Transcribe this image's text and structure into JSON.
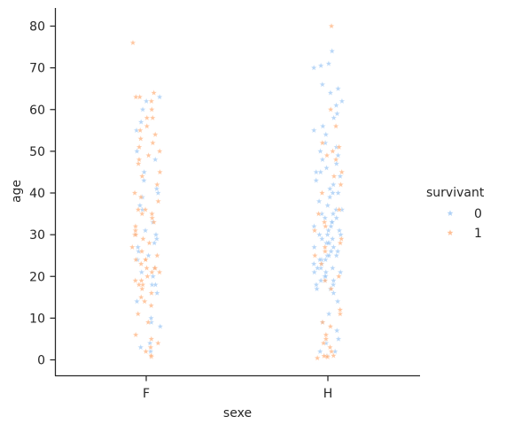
{
  "chart_data": {
    "type": "scatter",
    "subtype": "strip",
    "marker": "star",
    "categories": [
      "F",
      "H"
    ],
    "xlabel": "sexe",
    "ylabel": "age",
    "ylim": [
      -3.5,
      84
    ],
    "yticks": [
      0,
      10,
      20,
      30,
      40,
      50,
      60,
      70,
      80
    ],
    "grid": false,
    "legend": {
      "title": "survivant",
      "position": "right"
    },
    "series": [
      {
        "name": "0",
        "color": "#a1c9f4",
        "points": [
          {
            "x": "F",
            "y": 2
          },
          {
            "x": "F",
            "y": 3
          },
          {
            "x": "F",
            "y": 4
          },
          {
            "x": "F",
            "y": 8
          },
          {
            "x": "F",
            "y": 9
          },
          {
            "x": "F",
            "y": 10
          },
          {
            "x": "F",
            "y": 14
          },
          {
            "x": "F",
            "y": 16
          },
          {
            "x": "F",
            "y": 18
          },
          {
            "x": "F",
            "y": 18
          },
          {
            "x": "F",
            "y": 20
          },
          {
            "x": "F",
            "y": 21
          },
          {
            "x": "F",
            "y": 22
          },
          {
            "x": "F",
            "y": 24
          },
          {
            "x": "F",
            "y": 25
          },
          {
            "x": "F",
            "y": 26
          },
          {
            "x": "F",
            "y": 27
          },
          {
            "x": "F",
            "y": 28
          },
          {
            "x": "F",
            "y": 29
          },
          {
            "x": "F",
            "y": 30
          },
          {
            "x": "F",
            "y": 30
          },
          {
            "x": "F",
            "y": 31
          },
          {
            "x": "F",
            "y": 33
          },
          {
            "x": "F",
            "y": 36
          },
          {
            "x": "F",
            "y": 37
          },
          {
            "x": "F",
            "y": 39
          },
          {
            "x": "F",
            "y": 40
          },
          {
            "x": "F",
            "y": 41
          },
          {
            "x": "F",
            "y": 43
          },
          {
            "x": "F",
            "y": 45
          },
          {
            "x": "F",
            "y": 48
          },
          {
            "x": "F",
            "y": 50
          },
          {
            "x": "F",
            "y": 55
          },
          {
            "x": "F",
            "y": 57
          },
          {
            "x": "F",
            "y": 60
          },
          {
            "x": "F",
            "y": 62
          },
          {
            "x": "F",
            "y": 63
          },
          {
            "x": "H",
            "y": 1
          },
          {
            "x": "H",
            "y": 2
          },
          {
            "x": "H",
            "y": 2
          },
          {
            "x": "H",
            "y": 4
          },
          {
            "x": "H",
            "y": 5
          },
          {
            "x": "H",
            "y": 7
          },
          {
            "x": "H",
            "y": 9
          },
          {
            "x": "H",
            "y": 11
          },
          {
            "x": "H",
            "y": 14
          },
          {
            "x": "H",
            "y": 16
          },
          {
            "x": "H",
            "y": 17
          },
          {
            "x": "H",
            "y": 17
          },
          {
            "x": "H",
            "y": 18
          },
          {
            "x": "H",
            "y": 18
          },
          {
            "x": "H",
            "y": 19
          },
          {
            "x": "H",
            "y": 19
          },
          {
            "x": "H",
            "y": 19
          },
          {
            "x": "H",
            "y": 20
          },
          {
            "x": "H",
            "y": 20
          },
          {
            "x": "H",
            "y": 20
          },
          {
            "x": "H",
            "y": 21
          },
          {
            "x": "H",
            "y": 21
          },
          {
            "x": "H",
            "y": 21
          },
          {
            "x": "H",
            "y": 22
          },
          {
            "x": "H",
            "y": 22
          },
          {
            "x": "H",
            "y": 22
          },
          {
            "x": "H",
            "y": 23
          },
          {
            "x": "H",
            "y": 23
          },
          {
            "x": "H",
            "y": 24
          },
          {
            "x": "H",
            "y": 24
          },
          {
            "x": "H",
            "y": 24
          },
          {
            "x": "H",
            "y": 25
          },
          {
            "x": "H",
            "y": 25
          },
          {
            "x": "H",
            "y": 25
          },
          {
            "x": "H",
            "y": 26
          },
          {
            "x": "H",
            "y": 26
          },
          {
            "x": "H",
            "y": 27
          },
          {
            "x": "H",
            "y": 27
          },
          {
            "x": "H",
            "y": 28
          },
          {
            "x": "H",
            "y": 28
          },
          {
            "x": "H",
            "y": 28
          },
          {
            "x": "H",
            "y": 29
          },
          {
            "x": "H",
            "y": 29
          },
          {
            "x": "H",
            "y": 30
          },
          {
            "x": "H",
            "y": 30
          },
          {
            "x": "H",
            "y": 30
          },
          {
            "x": "H",
            "y": 31
          },
          {
            "x": "H",
            "y": 31
          },
          {
            "x": "H",
            "y": 32
          },
          {
            "x": "H",
            "y": 32
          },
          {
            "x": "H",
            "y": 33
          },
          {
            "x": "H",
            "y": 33
          },
          {
            "x": "H",
            "y": 34
          },
          {
            "x": "H",
            "y": 34
          },
          {
            "x": "H",
            "y": 35
          },
          {
            "x": "H",
            "y": 35
          },
          {
            "x": "H",
            "y": 36
          },
          {
            "x": "H",
            "y": 36
          },
          {
            "x": "H",
            "y": 37
          },
          {
            "x": "H",
            "y": 38
          },
          {
            "x": "H",
            "y": 39
          },
          {
            "x": "H",
            "y": 40
          },
          {
            "x": "H",
            "y": 40
          },
          {
            "x": "H",
            "y": 41
          },
          {
            "x": "H",
            "y": 42
          },
          {
            "x": "H",
            "y": 43
          },
          {
            "x": "H",
            "y": 44
          },
          {
            "x": "H",
            "y": 45
          },
          {
            "x": "H",
            "y": 45
          },
          {
            "x": "H",
            "y": 46
          },
          {
            "x": "H",
            "y": 47
          },
          {
            "x": "H",
            "y": 48
          },
          {
            "x": "H",
            "y": 49
          },
          {
            "x": "H",
            "y": 50
          },
          {
            "x": "H",
            "y": 51
          },
          {
            "x": "H",
            "y": 52
          },
          {
            "x": "H",
            "y": 54
          },
          {
            "x": "H",
            "y": 55
          },
          {
            "x": "H",
            "y": 56
          },
          {
            "x": "H",
            "y": 58
          },
          {
            "x": "H",
            "y": 59
          },
          {
            "x": "H",
            "y": 61
          },
          {
            "x": "H",
            "y": 62
          },
          {
            "x": "H",
            "y": 64
          },
          {
            "x": "H",
            "y": 65
          },
          {
            "x": "H",
            "y": 66
          },
          {
            "x": "H",
            "y": 70
          },
          {
            "x": "H",
            "y": 70.5
          },
          {
            "x": "H",
            "y": 71
          },
          {
            "x": "H",
            "y": 74
          }
        ]
      },
      {
        "name": "1",
        "color": "#ffb482",
        "points": [
          {
            "x": "F",
            "y": 0.75
          },
          {
            "x": "F",
            "y": 1
          },
          {
            "x": "F",
            "y": 2
          },
          {
            "x": "F",
            "y": 3
          },
          {
            "x": "F",
            "y": 4
          },
          {
            "x": "F",
            "y": 5
          },
          {
            "x": "F",
            "y": 6
          },
          {
            "x": "F",
            "y": 9
          },
          {
            "x": "F",
            "y": 11
          },
          {
            "x": "F",
            "y": 13
          },
          {
            "x": "F",
            "y": 14
          },
          {
            "x": "F",
            "y": 15
          },
          {
            "x": "F",
            "y": 16
          },
          {
            "x": "F",
            "y": 17
          },
          {
            "x": "F",
            "y": 18
          },
          {
            "x": "F",
            "y": 18
          },
          {
            "x": "F",
            "y": 19
          },
          {
            "x": "F",
            "y": 19
          },
          {
            "x": "F",
            "y": 20
          },
          {
            "x": "F",
            "y": 21
          },
          {
            "x": "F",
            "y": 21
          },
          {
            "x": "F",
            "y": 22
          },
          {
            "x": "F",
            "y": 22
          },
          {
            "x": "F",
            "y": 22
          },
          {
            "x": "F",
            "y": 23
          },
          {
            "x": "F",
            "y": 24
          },
          {
            "x": "F",
            "y": 24
          },
          {
            "x": "F",
            "y": 24
          },
          {
            "x": "F",
            "y": 25
          },
          {
            "x": "F",
            "y": 26
          },
          {
            "x": "F",
            "y": 27
          },
          {
            "x": "F",
            "y": 28
          },
          {
            "x": "F",
            "y": 29
          },
          {
            "x": "F",
            "y": 30
          },
          {
            "x": "F",
            "y": 30
          },
          {
            "x": "F",
            "y": 31
          },
          {
            "x": "F",
            "y": 32
          },
          {
            "x": "F",
            "y": 33
          },
          {
            "x": "F",
            "y": 34
          },
          {
            "x": "F",
            "y": 35
          },
          {
            "x": "F",
            "y": 35
          },
          {
            "x": "F",
            "y": 36
          },
          {
            "x": "F",
            "y": 36
          },
          {
            "x": "F",
            "y": 38
          },
          {
            "x": "F",
            "y": 39
          },
          {
            "x": "F",
            "y": 40
          },
          {
            "x": "F",
            "y": 42
          },
          {
            "x": "F",
            "y": 44
          },
          {
            "x": "F",
            "y": 45
          },
          {
            "x": "F",
            "y": 47
          },
          {
            "x": "F",
            "y": 48
          },
          {
            "x": "F",
            "y": 49
          },
          {
            "x": "F",
            "y": 50
          },
          {
            "x": "F",
            "y": 51
          },
          {
            "x": "F",
            "y": 52
          },
          {
            "x": "F",
            "y": 53
          },
          {
            "x": "F",
            "y": 54
          },
          {
            "x": "F",
            "y": 55
          },
          {
            "x": "F",
            "y": 56
          },
          {
            "x": "F",
            "y": 58
          },
          {
            "x": "F",
            "y": 58
          },
          {
            "x": "F",
            "y": 60
          },
          {
            "x": "F",
            "y": 62
          },
          {
            "x": "F",
            "y": 63
          },
          {
            "x": "F",
            "y": 63
          },
          {
            "x": "F",
            "y": 64
          },
          {
            "x": "F",
            "y": 76
          },
          {
            "x": "H",
            "y": 0.42
          },
          {
            "x": "H",
            "y": 0.67
          },
          {
            "x": "H",
            "y": 0.83
          },
          {
            "x": "H",
            "y": 0.92
          },
          {
            "x": "H",
            "y": 1
          },
          {
            "x": "H",
            "y": 2
          },
          {
            "x": "H",
            "y": 3
          },
          {
            "x": "H",
            "y": 4
          },
          {
            "x": "H",
            "y": 5
          },
          {
            "x": "H",
            "y": 6
          },
          {
            "x": "H",
            "y": 8
          },
          {
            "x": "H",
            "y": 9
          },
          {
            "x": "H",
            "y": 11
          },
          {
            "x": "H",
            "y": 12
          },
          {
            "x": "H",
            "y": 17
          },
          {
            "x": "H",
            "y": 19
          },
          {
            "x": "H",
            "y": 20
          },
          {
            "x": "H",
            "y": 23
          },
          {
            "x": "H",
            "y": 25
          },
          {
            "x": "H",
            "y": 26
          },
          {
            "x": "H",
            "y": 27
          },
          {
            "x": "H",
            "y": 28
          },
          {
            "x": "H",
            "y": 29
          },
          {
            "x": "H",
            "y": 31
          },
          {
            "x": "H",
            "y": 32
          },
          {
            "x": "H",
            "y": 33
          },
          {
            "x": "H",
            "y": 35
          },
          {
            "x": "H",
            "y": 36
          },
          {
            "x": "H",
            "y": 40
          },
          {
            "x": "H",
            "y": 42
          },
          {
            "x": "H",
            "y": 44
          },
          {
            "x": "H",
            "y": 45
          },
          {
            "x": "H",
            "y": 48
          },
          {
            "x": "H",
            "y": 49
          },
          {
            "x": "H",
            "y": 50
          },
          {
            "x": "H",
            "y": 51
          },
          {
            "x": "H",
            "y": 52
          },
          {
            "x": "H",
            "y": 56
          },
          {
            "x": "H",
            "y": 60
          },
          {
            "x": "H",
            "y": 80
          }
        ]
      }
    ]
  }
}
